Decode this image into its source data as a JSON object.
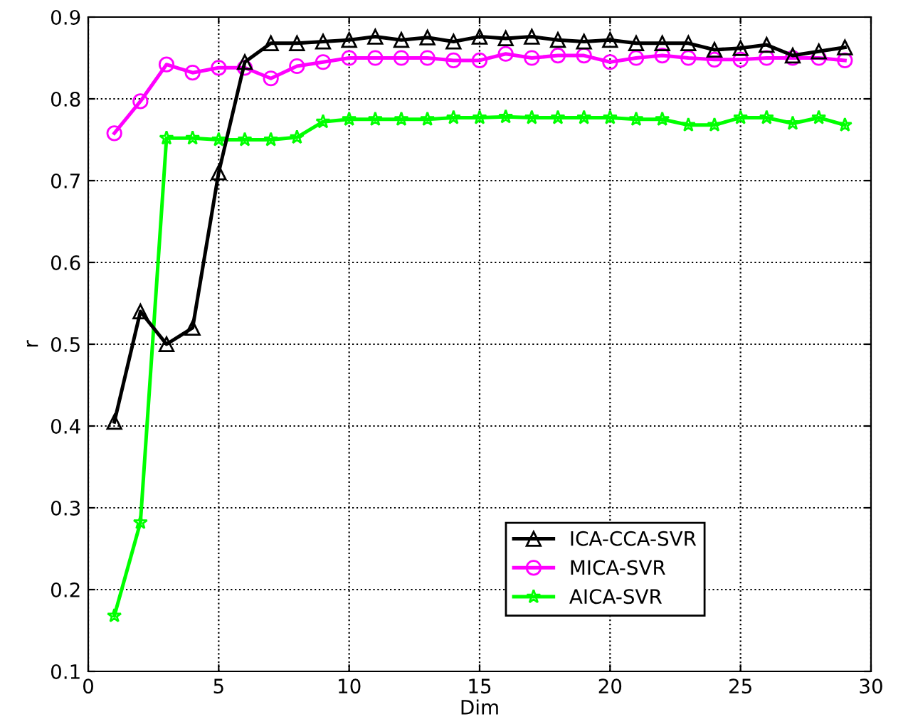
{
  "chart_data": {
    "type": "line",
    "xlabel": "Dim",
    "ylabel": "r",
    "x": [
      1,
      2,
      3,
      4,
      5,
      6,
      7,
      8,
      9,
      10,
      11,
      12,
      13,
      14,
      15,
      16,
      17,
      18,
      19,
      20,
      21,
      22,
      23,
      24,
      25,
      26,
      27,
      28,
      29
    ],
    "series": [
      {
        "name": "ICA-CCA-SVR",
        "color": "#000000",
        "marker": "triangle",
        "values": [
          0.405,
          0.54,
          0.5,
          0.52,
          0.71,
          0.845,
          0.868,
          0.868,
          0.87,
          0.872,
          0.876,
          0.872,
          0.875,
          0.87,
          0.876,
          0.874,
          0.876,
          0.872,
          0.87,
          0.872,
          0.868,
          0.868,
          0.868,
          0.86,
          0.862,
          0.866,
          0.853,
          0.858,
          0.863
        ]
      },
      {
        "name": "MICA-SVR",
        "color": "#ff00ff",
        "marker": "circle",
        "values": [
          0.758,
          0.797,
          0.842,
          0.832,
          0.838,
          0.838,
          0.825,
          0.84,
          0.845,
          0.85,
          0.85,
          0.85,
          0.85,
          0.847,
          0.847,
          0.855,
          0.85,
          0.853,
          0.853,
          0.845,
          0.85,
          0.853,
          0.85,
          0.848,
          0.848,
          0.85,
          0.85,
          0.85,
          0.847
        ]
      },
      {
        "name": "AICA-SVR",
        "color": "#00ff00",
        "marker": "star",
        "values": [
          0.168,
          0.282,
          0.752,
          0.752,
          0.75,
          0.75,
          0.75,
          0.753,
          0.772,
          0.775,
          0.775,
          0.775,
          0.775,
          0.777,
          0.777,
          0.778,
          0.777,
          0.777,
          0.777,
          0.777,
          0.775,
          0.775,
          0.768,
          0.768,
          0.777,
          0.777,
          0.77,
          0.777,
          0.768
        ]
      }
    ],
    "xlim": [
      0,
      30
    ],
    "xticks": [
      0,
      5,
      10,
      15,
      20,
      25,
      30
    ],
    "ylim": [
      0.1,
      0.9
    ],
    "yticks": [
      0.1,
      0.2,
      0.3,
      0.4,
      0.5,
      0.6,
      0.7,
      0.8,
      0.9
    ],
    "grid": true,
    "legend": "lower right",
    "line_style": "solid"
  }
}
